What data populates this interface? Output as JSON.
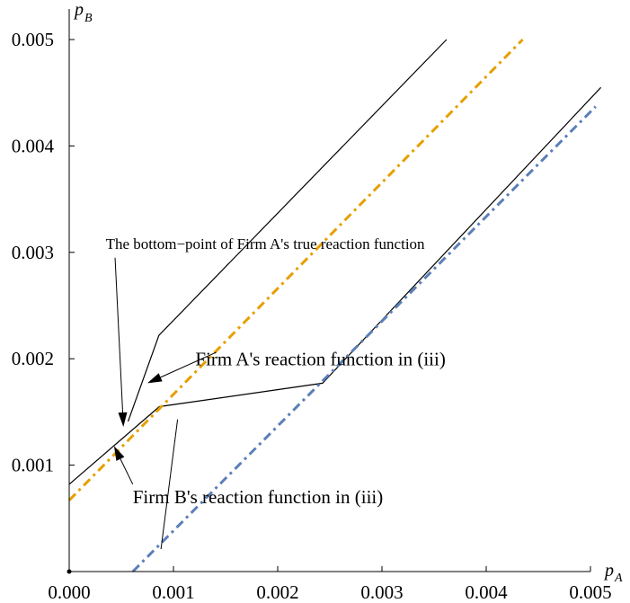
{
  "chart_data": {
    "type": "line",
    "title": "",
    "xlabel": {
      "main": "p",
      "sub": "A"
    },
    "ylabel": {
      "main": "p",
      "sub": "B"
    },
    "xlim": [
      0,
      0.005
    ],
    "ylim": [
      0,
      0.005
    ],
    "grid": false,
    "legend": "none",
    "x_ticks": [
      0.0,
      0.001,
      0.002,
      0.003,
      0.004,
      0.005
    ],
    "x_tick_labels": [
      "0.000",
      "0.001",
      "0.002",
      "0.003",
      "0.004",
      "0.005"
    ],
    "y_ticks": [
      0.001,
      0.002,
      0.003,
      0.004,
      0.005
    ],
    "y_tick_labels": [
      "0.001",
      "0.002",
      "0.003",
      "0.004",
      "0.005"
    ],
    "series": [
      {
        "color": "#000000",
        "style": "solid",
        "points": [
          [
            0.000565,
            0.00141
          ],
          [
            0.00086,
            0.00222
          ],
          [
            0.00362,
            0.005
          ]
        ]
      },
      {
        "color": "#000000",
        "style": "solid",
        "points": [
          [
            0.0,
            0.00082
          ],
          [
            0.000865,
            0.00155
          ],
          [
            0.00243,
            0.00177
          ],
          [
            0.0051,
            0.00455
          ]
        ]
      },
      {
        "color": "#E69F00",
        "style": "dashdot",
        "points": [
          [
            0.0,
            0.00067
          ],
          [
            0.00435,
            0.005
          ]
        ]
      },
      {
        "color": "#5B7FB8",
        "style": "dashdot",
        "points": [
          [
            0.00061,
            0.0
          ],
          [
            0.00505,
            0.00437
          ]
        ]
      }
    ],
    "annotations": [
      {
        "text": "The bottom−point of Firm A's true reaction function",
        "font_size": 17,
        "text_pos": [
          0.00035,
          0.00303
        ],
        "arrows": [
          {
            "from": [
              0.00044,
              0.00295
            ],
            "to": [
              0.00052,
              0.00136
            ]
          }
        ]
      },
      {
        "text": "Firm A's reaction function in (iii)",
        "font_size": 21,
        "text_pos": [
          0.00121,
          0.00194
        ],
        "arrows": [
          {
            "from": [
              0.00141,
              0.00206
            ],
            "to": [
              0.00075,
              0.00177
            ]
          }
        ]
      },
      {
        "text": "Firm B's reaction function in (iii)",
        "font_size": 21,
        "text_pos": [
          0.00061,
          0.00064
        ],
        "arrows": [
          {
            "from": [
              0.00061,
              0.00082
            ],
            "to": [
              0.00043,
              0.00118
            ]
          }
        ]
      }
    ],
    "extra_lines": [
      {
        "points": [
          [
            0.00104,
            0.00143
          ],
          [
            0.00088,
            0.00021
          ]
        ]
      }
    ]
  }
}
